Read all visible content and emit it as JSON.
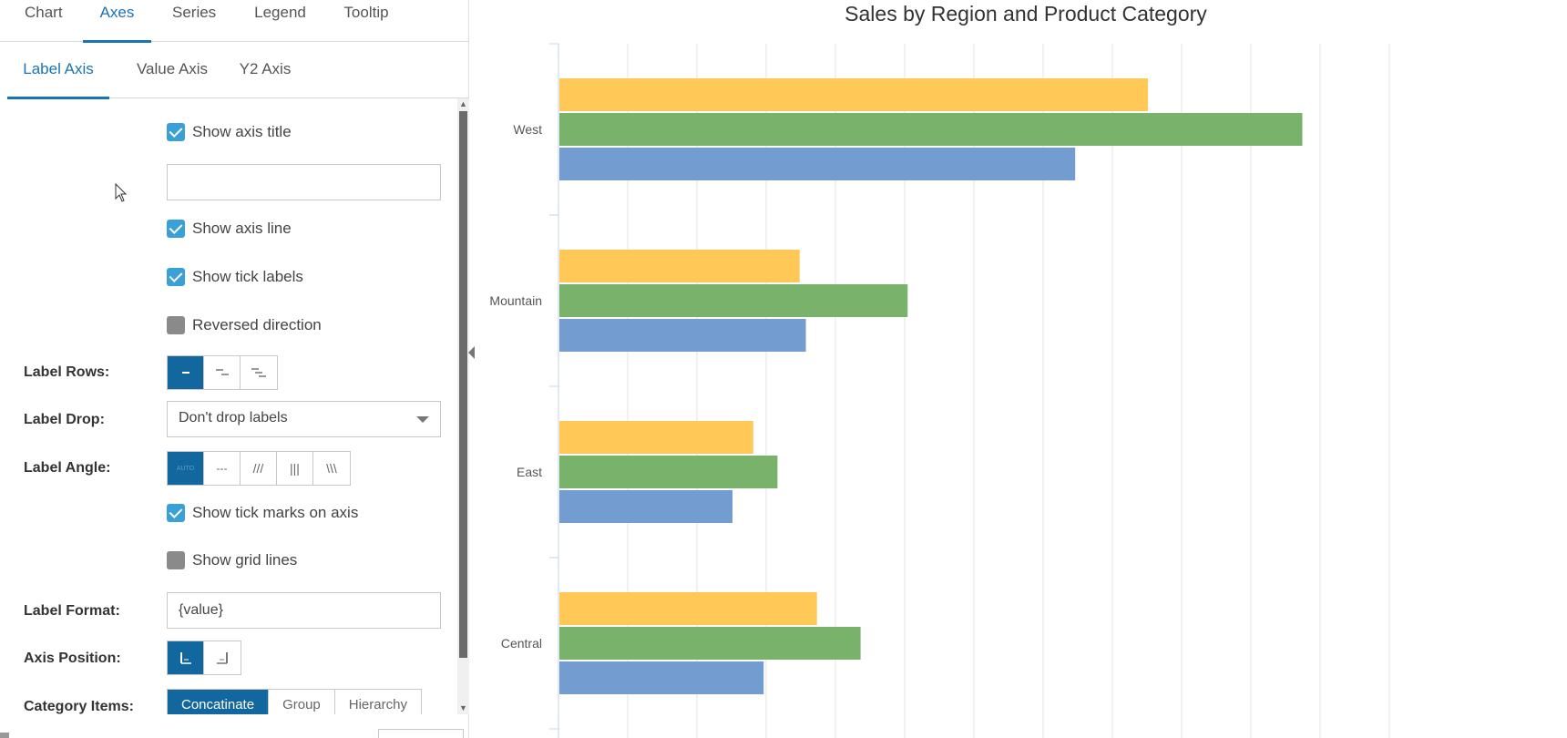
{
  "tabs": [
    {
      "label": "Chart",
      "active": false
    },
    {
      "label": "Axes",
      "active": true
    },
    {
      "label": "Series",
      "active": false
    },
    {
      "label": "Legend",
      "active": false
    },
    {
      "label": "Tooltip",
      "active": false
    }
  ],
  "subtabs": [
    {
      "label": "Label Axis",
      "active": true
    },
    {
      "label": "Value Axis",
      "active": false
    },
    {
      "label": "Y2 Axis",
      "active": false
    }
  ],
  "form": {
    "show_axis_title": {
      "label": "Show axis title",
      "checked": true
    },
    "axis_title_value": "",
    "show_axis_line": {
      "label": "Show axis line",
      "checked": true
    },
    "show_tick_labels": {
      "label": "Show tick labels",
      "checked": true
    },
    "reversed_direction": {
      "label": "Reversed direction",
      "checked": false
    },
    "label_rows": {
      "label": "Label Rows:",
      "selected_index": 0
    },
    "label_drop": {
      "label": "Label Drop:",
      "value": "Don't drop labels"
    },
    "label_angle": {
      "label": "Label Angle:",
      "selected_index": 0,
      "options": [
        "AUTO",
        "---",
        "///",
        "|||",
        "\\\\\\"
      ]
    },
    "show_tick_marks": {
      "label": "Show tick marks on axis",
      "checked": true
    },
    "show_grid_lines": {
      "label": "Show grid lines",
      "checked": false
    },
    "label_format": {
      "label": "Label Format:",
      "value": "{value}"
    },
    "axis_position": {
      "label": "Axis Position:",
      "selected_index": 0
    },
    "category_items": {
      "label": "Category Items:",
      "options": [
        "Concatinate",
        "Group",
        "Hierarchy"
      ],
      "selected_index": 0
    }
  },
  "colors": {
    "accent": "#1a73b5",
    "button_active": "#12679e",
    "checkbox_checked": "#3aa0d8",
    "series_yellow": "#ffc857",
    "series_green": "#79b36b",
    "series_blue": "#739dd1"
  },
  "chart_data": {
    "type": "bar",
    "orientation": "horizontal",
    "title": "Sales by Region and Product Category",
    "categories": [
      "West",
      "Mountain",
      "East",
      "Central"
    ],
    "series": [
      {
        "color": "#ffc857",
        "values": [
          85,
          34.7,
          28,
          37.2
        ]
      },
      {
        "color": "#79b36b",
        "values": [
          107.3,
          50.3,
          31.5,
          43.5
        ]
      },
      {
        "color": "#739dd1",
        "values": [
          74.5,
          35.6,
          25,
          29.5
        ]
      }
    ],
    "xlim": [
      0,
      120
    ],
    "value_grid": true,
    "category_grid": false,
    "tick_labels_visible": false
  }
}
